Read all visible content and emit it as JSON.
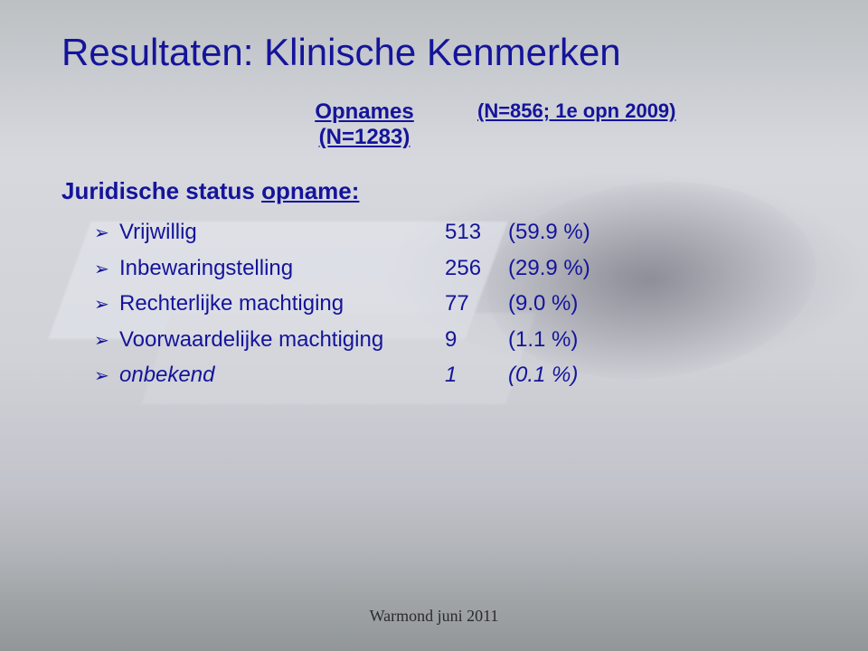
{
  "title": "Resultaten: Klinische Kenmerken",
  "column_headers": {
    "col1": "Opnames",
    "col1_sub": "(N=1283)",
    "col2": "(N=856; 1e opn 2009)"
  },
  "section_heading_prefix": "Juridische status ",
  "section_heading_underlined": "opname:",
  "rows": [
    {
      "label": "Vrijwillig",
      "value": "513",
      "pct": "(59.9 %)",
      "italic": false
    },
    {
      "label": "Inbewaringstelling",
      "value": "256",
      "pct": "(29.9 %)",
      "italic": false
    },
    {
      "label": "Rechterlijke machtiging",
      "value": "77",
      "pct": "(9.0 %)",
      "italic": false
    },
    {
      "label": "Voorwaardelijke machtiging",
      "value": "9",
      "pct": "(1.1 %)",
      "italic": false
    },
    {
      "label": "onbekend",
      "value": "1",
      "pct": "(0.1 %)",
      "italic": true
    }
  ],
  "footer": "Warmond juni 2011",
  "colors": {
    "text_blue": "#14149a",
    "footer_text": "#2a2a2a"
  },
  "typography": {
    "title_fontsize": 42,
    "body_fontsize": 24,
    "subhead_fontsize": 26,
    "colhead_fontsize": 24,
    "footer_fontsize": 18
  }
}
